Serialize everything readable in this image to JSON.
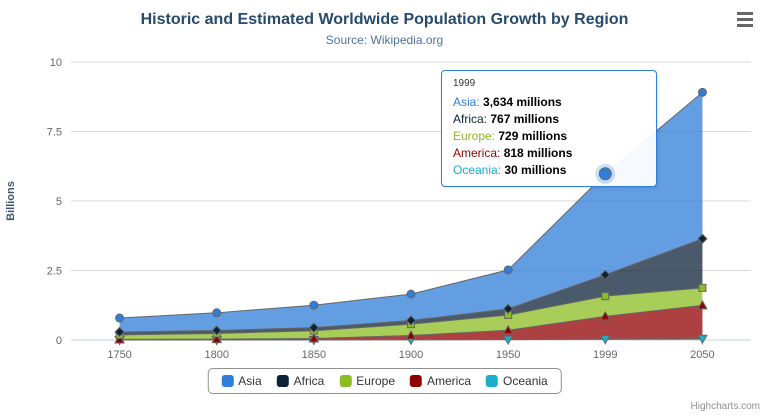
{
  "header": {
    "title": "Historic and Estimated Worldwide Population Growth by Region",
    "subtitle": "Source: Wikipedia.org"
  },
  "chart_data": {
    "type": "area",
    "stacked": true,
    "title": "Historic and Estimated Worldwide Population Growth by Region",
    "subtitle": "Source: Wikipedia.org",
    "xlabel": "",
    "ylabel": "Billions",
    "unit": "millions",
    "ylim": [
      0,
      10
    ],
    "yticks": [
      0,
      2.5,
      5,
      7.5,
      10
    ],
    "ytick_labels": [
      "0",
      "2.5",
      "5",
      "7.5",
      "10"
    ],
    "categories": [
      "1750",
      "1800",
      "1850",
      "1900",
      "1950",
      "1999",
      "2050"
    ],
    "grid": true,
    "legend_position": "bottom",
    "series": [
      {
        "name": "Asia",
        "color": "#2f7ed8",
        "marker": "circle",
        "values": [
          502,
          635,
          809,
          947,
          1402,
          3634,
          5268
        ]
      },
      {
        "name": "Africa",
        "color": "#0d233a",
        "marker": "diamond",
        "values": [
          106,
          107,
          111,
          133,
          221,
          767,
          1766
        ]
      },
      {
        "name": "Europe",
        "color": "#8bbc21",
        "marker": "square",
        "values": [
          163,
          203,
          276,
          408,
          547,
          729,
          628
        ]
      },
      {
        "name": "America",
        "color": "#910000",
        "marker": "triangle",
        "values": [
          18,
          31,
          54,
          156,
          339,
          818,
          1201
        ]
      },
      {
        "name": "Oceania",
        "color": "#1aadce",
        "marker": "triangle-down",
        "values": [
          2,
          2,
          2,
          6,
          13,
          30,
          46
        ]
      }
    ],
    "stack_order_bottom_to_top": [
      "Oceania",
      "America",
      "Europe",
      "Africa",
      "Asia"
    ],
    "hover": {
      "series": "Asia",
      "category_index": 5,
      "category": "1999"
    }
  },
  "tooltip": {
    "header": "1999",
    "unit": "millions",
    "border_color": "#2f7ed8",
    "rows": [
      {
        "name": "Asia",
        "value": "3,634",
        "color": "#2f7ed8"
      },
      {
        "name": "Africa",
        "value": "767",
        "color": "#0d233a"
      },
      {
        "name": "Europe",
        "value": "729",
        "color": "#8bbc21"
      },
      {
        "name": "America",
        "value": "818",
        "color": "#910000"
      },
      {
        "name": "Oceania",
        "value": "30",
        "color": "#1aadce"
      }
    ]
  },
  "credits": {
    "label": "Highcharts.com"
  },
  "icons": {
    "context_menu": "hamburger-icon"
  }
}
